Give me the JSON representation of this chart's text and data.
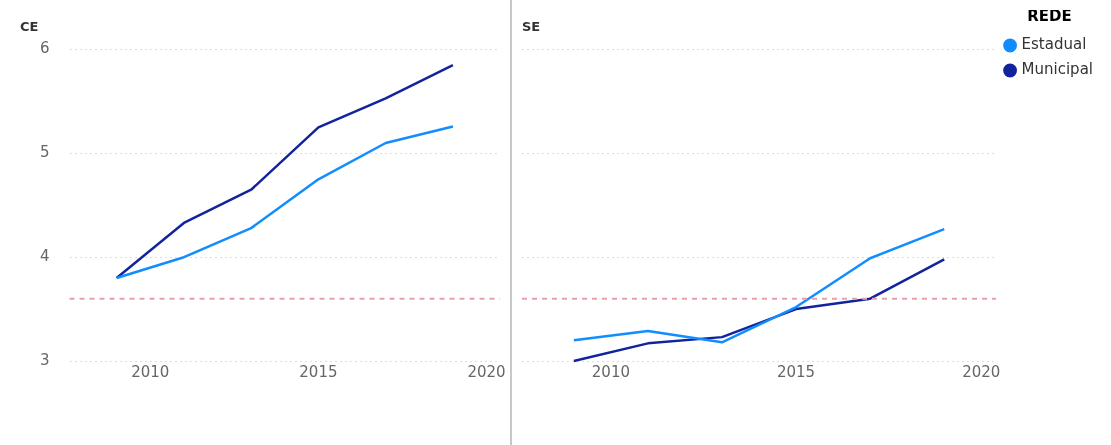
{
  "chart_data": [
    {
      "type": "line",
      "title": "CE",
      "x": [
        2009,
        2011,
        2013,
        2015,
        2017,
        2019
      ],
      "xlim": [
        2007.6,
        2020.4
      ],
      "xticks": [
        2010,
        2015,
        2020
      ],
      "ylim": [
        3,
        6
      ],
      "yticks": [
        3,
        4,
        5,
        6
      ],
      "grid": "y",
      "legend": false,
      "series": [
        {
          "color": "#118dff",
          "values": [
            3.8,
            4.0,
            4.28,
            4.75,
            5.1,
            5.26
          ]
        },
        {
          "color": "#12239e",
          "values": [
            3.8,
            4.33,
            4.65,
            5.25,
            5.53,
            5.85
          ]
        }
      ],
      "ref_lines": [
        {
          "axis": "y",
          "value": 3.6,
          "color": "#e8a0a8",
          "line_style": "dashed"
        }
      ]
    },
    {
      "type": "line",
      "title": "SE",
      "x": [
        2009,
        2011,
        2013,
        2015,
        2017,
        2019
      ],
      "xlim": [
        2007.6,
        2020.4
      ],
      "xticks": [
        2010,
        2015,
        2020
      ],
      "ylim": [
        3,
        6
      ],
      "yticks": [
        3,
        4,
        5,
        6
      ],
      "grid": "y",
      "tick_labels": "x",
      "legend": "top right",
      "legend_title": "REDE",
      "series": [
        {
          "name": "Estadual",
          "color": "#118dff",
          "values": [
            3.2,
            3.29,
            3.18,
            3.52,
            3.99,
            4.27
          ]
        },
        {
          "name": "Municipal",
          "color": "#12239e",
          "values": [
            3.0,
            3.17,
            3.23,
            3.5,
            3.6,
            3.98
          ]
        }
      ],
      "ref_lines": [
        {
          "axis": "y",
          "value": 3.6,
          "color": "#e8a0a8",
          "line_style": "dashed"
        }
      ]
    }
  ]
}
